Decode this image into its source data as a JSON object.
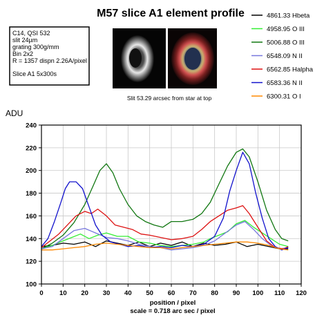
{
  "chart_data": {
    "type": "line",
    "title": "M57 slice A1 element profile",
    "info_lines": [
      "C14, QSI 532",
      "slit 24µm",
      "grating 300g/mm",
      "Bin 2x2",
      "R = 1357 dispn 2.26A/pixel",
      "Slice A1  5x300s"
    ],
    "caption": "Slit 53.29 arcsec from star at top",
    "ylabel": "ADU",
    "xlabel": "position / pixel",
    "xlabel2": "scale = 0.718 arc sec / pixel",
    "xlim": [
      0,
      120
    ],
    "ylim": [
      100,
      240
    ],
    "xticks": [
      0,
      10,
      20,
      30,
      40,
      50,
      60,
      70,
      80,
      90,
      100,
      110,
      120
    ],
    "yticks": [
      100,
      120,
      140,
      160,
      180,
      200,
      220,
      240
    ],
    "grid": true,
    "legend_position": "top-right",
    "series": [
      {
        "name": "4861.33 Hbeta",
        "color": "#000000",
        "points": [
          [
            0,
            133
          ],
          [
            5,
            134
          ],
          [
            10,
            136
          ],
          [
            15,
            135
          ],
          [
            20,
            137
          ],
          [
            25,
            133
          ],
          [
            30,
            138
          ],
          [
            35,
            136
          ],
          [
            40,
            134
          ],
          [
            45,
            137
          ],
          [
            50,
            133
          ],
          [
            55,
            136
          ],
          [
            60,
            134
          ],
          [
            65,
            137
          ],
          [
            70,
            133
          ],
          [
            75,
            136
          ],
          [
            80,
            134
          ],
          [
            85,
            135
          ],
          [
            90,
            137
          ],
          [
            95,
            133
          ],
          [
            100,
            135
          ],
          [
            105,
            133
          ],
          [
            110,
            131
          ],
          [
            114,
            131
          ]
        ]
      },
      {
        "name": "4958.95 O III",
        "color": "#33ee33",
        "points": [
          [
            0,
            131
          ],
          [
            5,
            134
          ],
          [
            10,
            138
          ],
          [
            14,
            141
          ],
          [
            18,
            144
          ],
          [
            22,
            140
          ],
          [
            26,
            143
          ],
          [
            30,
            145
          ],
          [
            35,
            142
          ],
          [
            40,
            142
          ],
          [
            45,
            137
          ],
          [
            50,
            136
          ],
          [
            55,
            134
          ],
          [
            60,
            133
          ],
          [
            65,
            134
          ],
          [
            70,
            135
          ],
          [
            75,
            137
          ],
          [
            78,
            140
          ],
          [
            82,
            143
          ],
          [
            86,
            146
          ],
          [
            90,
            153
          ],
          [
            94,
            156
          ],
          [
            98,
            150
          ],
          [
            102,
            145
          ],
          [
            106,
            140
          ],
          [
            110,
            135
          ],
          [
            114,
            133
          ]
        ]
      },
      {
        "name": "5006.88 O III",
        "color": "#117711",
        "points": [
          [
            0,
            131
          ],
          [
            5,
            136
          ],
          [
            10,
            143
          ],
          [
            15,
            154
          ],
          [
            20,
            170
          ],
          [
            24,
            187
          ],
          [
            27,
            200
          ],
          [
            30,
            206
          ],
          [
            33,
            198
          ],
          [
            36,
            184
          ],
          [
            40,
            170
          ],
          [
            44,
            160
          ],
          [
            48,
            155
          ],
          [
            52,
            152
          ],
          [
            56,
            150
          ],
          [
            60,
            155
          ],
          [
            65,
            155
          ],
          [
            70,
            157
          ],
          [
            74,
            162
          ],
          [
            78,
            172
          ],
          [
            82,
            188
          ],
          [
            86,
            204
          ],
          [
            90,
            216
          ],
          [
            93,
            219
          ],
          [
            96,
            212
          ],
          [
            100,
            190
          ],
          [
            104,
            165
          ],
          [
            108,
            148
          ],
          [
            111,
            140
          ],
          [
            114,
            138
          ]
        ]
      },
      {
        "name": "6548.09 N II",
        "color": "#7777dd",
        "points": [
          [
            0,
            131
          ],
          [
            5,
            133
          ],
          [
            10,
            140
          ],
          [
            15,
            147
          ],
          [
            20,
            149
          ],
          [
            25,
            145
          ],
          [
            30,
            141
          ],
          [
            35,
            140
          ],
          [
            40,
            138
          ],
          [
            45,
            135
          ],
          [
            50,
            133
          ],
          [
            55,
            132
          ],
          [
            60,
            130
          ],
          [
            65,
            131
          ],
          [
            70,
            132
          ],
          [
            75,
            134
          ],
          [
            80,
            138
          ],
          [
            85,
            145
          ],
          [
            90,
            152
          ],
          [
            94,
            155
          ],
          [
            98,
            148
          ],
          [
            102,
            140
          ],
          [
            106,
            134
          ],
          [
            110,
            131
          ],
          [
            114,
            132
          ]
        ]
      },
      {
        "name": "6562.85 Halpha",
        "color": "#dd1111",
        "points": [
          [
            0,
            132
          ],
          [
            4,
            138
          ],
          [
            8,
            144
          ],
          [
            12,
            152
          ],
          [
            16,
            160
          ],
          [
            20,
            164
          ],
          [
            23,
            162
          ],
          [
            26,
            166
          ],
          [
            30,
            160
          ],
          [
            34,
            152
          ],
          [
            38,
            150
          ],
          [
            42,
            148
          ],
          [
            46,
            144
          ],
          [
            50,
            143
          ],
          [
            55,
            141
          ],
          [
            60,
            139
          ],
          [
            65,
            140
          ],
          [
            70,
            142
          ],
          [
            74,
            148
          ],
          [
            78,
            155
          ],
          [
            82,
            160
          ],
          [
            86,
            165
          ],
          [
            90,
            167
          ],
          [
            93,
            169
          ],
          [
            96,
            162
          ],
          [
            100,
            150
          ],
          [
            104,
            138
          ],
          [
            108,
            132
          ],
          [
            112,
            131
          ],
          [
            114,
            133
          ]
        ]
      },
      {
        "name": "6583.36 N II",
        "color": "#1111cc",
        "points": [
          [
            0,
            133
          ],
          [
            3,
            140
          ],
          [
            6,
            155
          ],
          [
            9,
            172
          ],
          [
            11,
            184
          ],
          [
            13,
            190
          ],
          [
            16,
            190
          ],
          [
            19,
            184
          ],
          [
            22,
            168
          ],
          [
            25,
            152
          ],
          [
            28,
            143
          ],
          [
            32,
            137
          ],
          [
            36,
            135
          ],
          [
            40,
            133
          ],
          [
            45,
            134
          ],
          [
            50,
            132
          ],
          [
            55,
            133
          ],
          [
            60,
            132
          ],
          [
            65,
            134
          ],
          [
            70,
            133
          ],
          [
            75,
            135
          ],
          [
            80,
            142
          ],
          [
            84,
            158
          ],
          [
            87,
            182
          ],
          [
            90,
            200
          ],
          [
            93,
            216
          ],
          [
            96,
            206
          ],
          [
            99,
            180
          ],
          [
            102,
            158
          ],
          [
            105,
            140
          ],
          [
            108,
            133
          ],
          [
            111,
            130
          ],
          [
            114,
            132
          ]
        ]
      },
      {
        "name": "6300.31 O I",
        "color": "#ff8800",
        "points": [
          [
            0,
            130
          ],
          [
            5,
            130
          ],
          [
            10,
            131
          ],
          [
            15,
            132
          ],
          [
            20,
            133
          ],
          [
            25,
            135
          ],
          [
            30,
            136
          ],
          [
            35,
            135
          ],
          [
            40,
            134
          ],
          [
            45,
            133
          ],
          [
            50,
            132
          ],
          [
            55,
            132
          ],
          [
            60,
            131
          ],
          [
            65,
            132
          ],
          [
            70,
            133
          ],
          [
            75,
            134
          ],
          [
            80,
            135
          ],
          [
            85,
            136
          ],
          [
            90,
            137
          ],
          [
            95,
            137
          ],
          [
            100,
            136
          ],
          [
            105,
            134
          ],
          [
            110,
            131
          ],
          [
            114,
            130
          ]
        ]
      }
    ]
  }
}
